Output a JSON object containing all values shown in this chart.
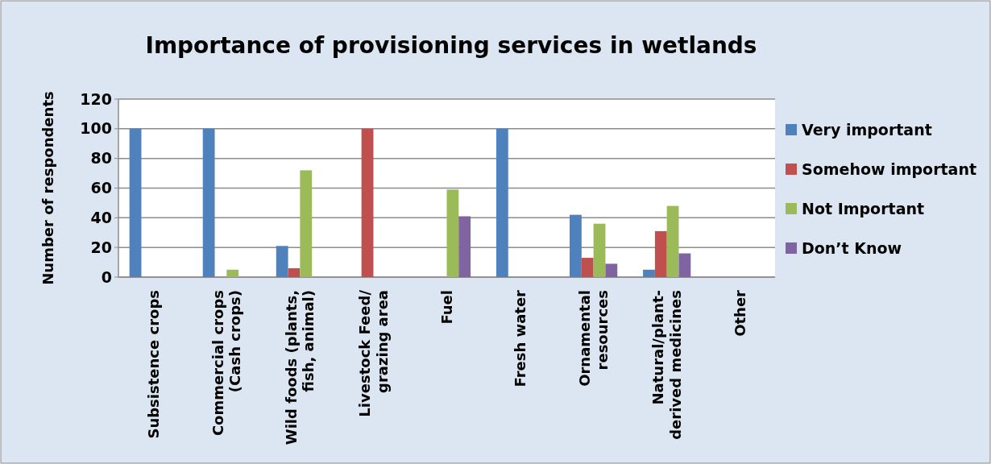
{
  "chart_data": {
    "type": "bar",
    "title": "Importance of provisioning services in wetlands",
    "ylabel": "Number of respondents",
    "categories": [
      "Subsistence crops",
      "Commercial crops\n(Cash crops)",
      "Wild foods (plants,\nfish, animal)",
      "Livestock Feed/\ngrazing area",
      "Fuel",
      "Fresh water",
      "Ornamental\nresources",
      "Natural/plant-\nderived medicines",
      "Other"
    ],
    "series": [
      {
        "name": "Very important",
        "color": "#4f81bd",
        "values": [
          100,
          100,
          21,
          0,
          0,
          100,
          42,
          5,
          0
        ]
      },
      {
        "name": "Somehow important",
        "color": "#c0504d",
        "values": [
          0,
          0,
          6,
          100,
          0,
          0,
          13,
          31,
          0
        ]
      },
      {
        "name": "Not Important",
        "color": "#9bbb59",
        "values": [
          0,
          5,
          72,
          0,
          59,
          0,
          36,
          48,
          0
        ]
      },
      {
        "name": "Don’t Know",
        "color": "#8064a2",
        "values": [
          0,
          0,
          0,
          0,
          41,
          0,
          9,
          16,
          0
        ]
      }
    ],
    "ylim": [
      0,
      120
    ],
    "yticks": [
      0,
      20,
      40,
      60,
      80,
      100,
      120
    ],
    "grid": "y",
    "legend": "right"
  }
}
